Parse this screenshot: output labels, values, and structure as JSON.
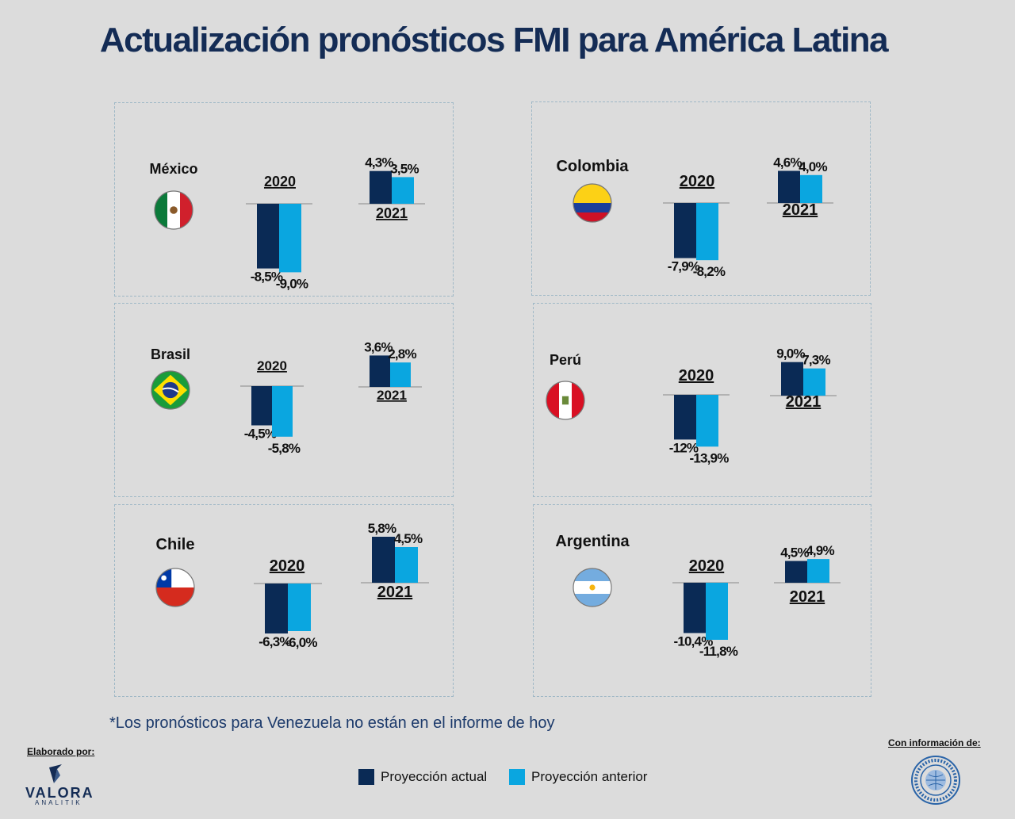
{
  "title": "Actualización pronósticos FMI para América Latina",
  "note": "*Los pronósticos para Venezuela no están en el informe de hoy",
  "footer": {
    "made_by": "Elaborado por:",
    "brand": "VALORA",
    "brand_sub": "ANALITIK",
    "info": "Con información de:",
    "imf_logo": "imf-seal-icon"
  },
  "colors": {
    "actual": "#0a2a55",
    "previous": "#0aa6e0"
  },
  "legend": [
    {
      "label": "Proyección actual",
      "color": "#0a2a55"
    },
    {
      "label": "Proyección anterior",
      "color": "#0aa6e0"
    }
  ],
  "chart_data": [
    {
      "type": "bar",
      "country": "México",
      "flag": "mexico-flag-icon",
      "categories": [
        "2020",
        "2021"
      ],
      "series": [
        {
          "name": "Proyección actual",
          "values": [
            -8.5,
            4.3
          ],
          "labels": [
            "-8,5%",
            "4,3%"
          ]
        },
        {
          "name": "Proyección anterior",
          "values": [
            -9.0,
            3.5
          ],
          "labels": [
            "-9,0%",
            "3,5%"
          ]
        }
      ]
    },
    {
      "type": "bar",
      "country": "Colombia",
      "flag": "colombia-flag-icon",
      "categories": [
        "2020",
        "2021"
      ],
      "series": [
        {
          "name": "Proyección actual",
          "values": [
            -7.9,
            4.6
          ],
          "labels": [
            "-7,9%",
            "4,6%"
          ]
        },
        {
          "name": "Proyección anterior",
          "values": [
            -8.2,
            4.0
          ],
          "labels": [
            "-8,2%",
            "4,0%"
          ]
        }
      ]
    },
    {
      "type": "bar",
      "country": "Brasil",
      "flag": "brazil-flag-icon",
      "categories": [
        "2020",
        "2021"
      ],
      "series": [
        {
          "name": "Proyección actual",
          "values": [
            -4.5,
            3.6
          ],
          "labels": [
            "-4,5%",
            "3,6%"
          ]
        },
        {
          "name": "Proyección anterior",
          "values": [
            -5.8,
            2.8
          ],
          "labels": [
            "-5,8%",
            "2,8%"
          ]
        }
      ]
    },
    {
      "type": "bar",
      "country": "Perú",
      "flag": "peru-flag-icon",
      "categories": [
        "2020",
        "2021"
      ],
      "series": [
        {
          "name": "Proyección actual",
          "values": [
            -12,
            9.0
          ],
          "labels": [
            "-12%",
            "9,0%"
          ]
        },
        {
          "name": "Proyección anterior",
          "values": [
            -13.9,
            7.3
          ],
          "labels": [
            "-13,9%",
            "7,3%"
          ]
        }
      ]
    },
    {
      "type": "bar",
      "country": "Chile",
      "flag": "chile-flag-icon",
      "categories": [
        "2020",
        "2021"
      ],
      "series": [
        {
          "name": "Proyección actual",
          "values": [
            -6.3,
            5.8
          ],
          "labels": [
            "-6,3%",
            "5,8%"
          ]
        },
        {
          "name": "Proyección anterior",
          "values": [
            -6.0,
            4.5
          ],
          "labels": [
            "-6,0%",
            "4,5%"
          ]
        }
      ]
    },
    {
      "type": "bar",
      "country": "Argentina",
      "flag": "argentina-flag-icon",
      "categories": [
        "2020",
        "2021"
      ],
      "series": [
        {
          "name": "Proyección actual",
          "values": [
            -10.4,
            4.5
          ],
          "labels": [
            "-10,4%",
            "4,5%"
          ]
        },
        {
          "name": "Proyección anterior",
          "values": [
            -11.8,
            4.9
          ],
          "labels": [
            "-11,8%",
            "4,9%"
          ]
        }
      ]
    }
  ]
}
